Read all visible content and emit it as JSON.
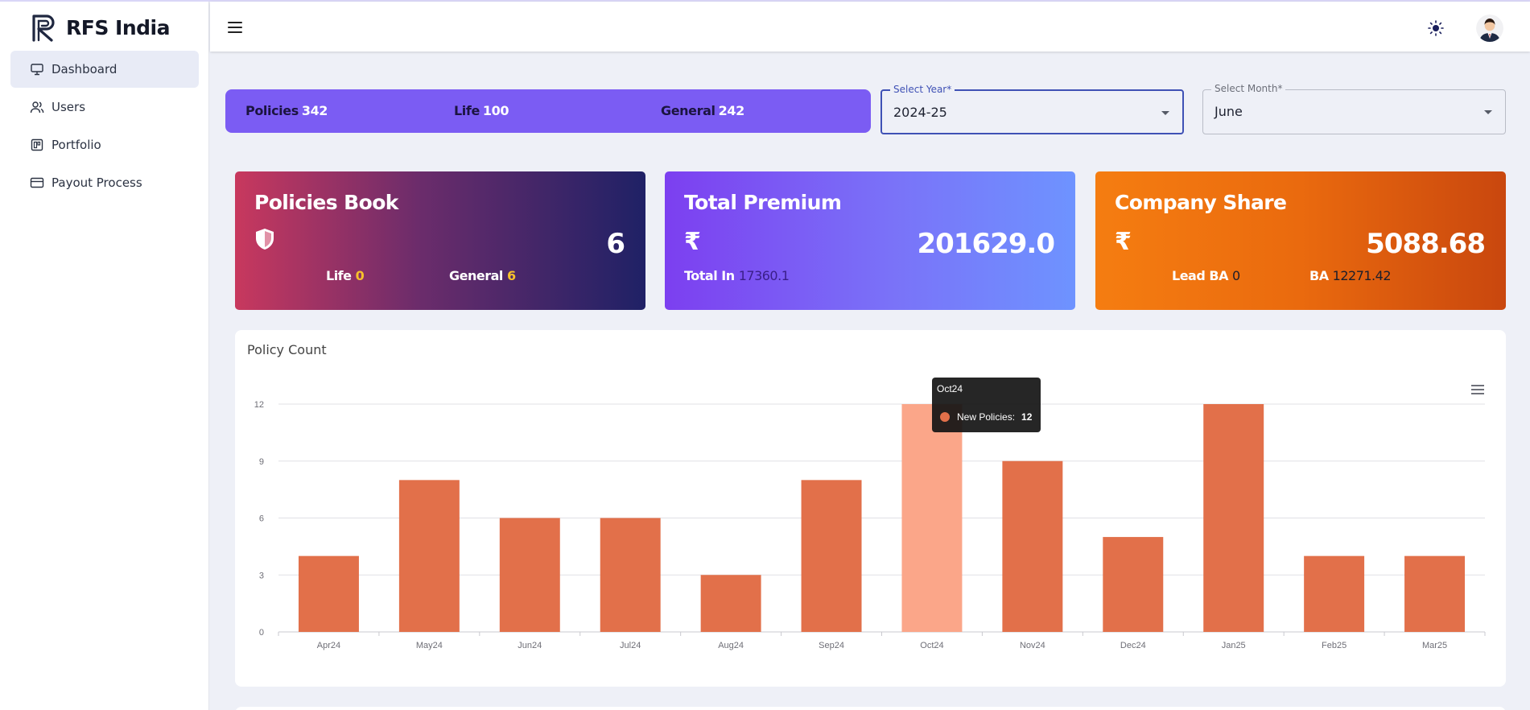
{
  "brand": {
    "name": "RFS India",
    "logo_icon": "rfs-logo-icon"
  },
  "sidebar": {
    "items": [
      {
        "label": "Dashboard",
        "icon": "monitor-icon",
        "active": true
      },
      {
        "label": "Users",
        "icon": "users-icon"
      },
      {
        "label": "Portfolio",
        "icon": "portfolio-icon"
      },
      {
        "label": "Payout Process",
        "icon": "card-icon"
      }
    ]
  },
  "header": {
    "menu_icon": "hamburger-icon",
    "theme_icon": "sun-icon",
    "avatar_icon": "user-avatar"
  },
  "summary": {
    "policies_label": "Policies",
    "policies_value": "342",
    "life_label": "Life",
    "life_value": "100",
    "general_label": "General",
    "general_value": "242"
  },
  "filters": {
    "year_label": "Select Year*",
    "year_value": "2024-25",
    "month_label": "Select Month*",
    "month_value": "June"
  },
  "cards": {
    "policies_book": {
      "title": "Policies Book",
      "icon": "shield-icon",
      "value": "6",
      "life_label": "Life",
      "life_value": "0",
      "general_label": "General",
      "general_value": "6"
    },
    "total_premium": {
      "title": "Total Premium",
      "icon_text": "₹",
      "value": "201629.0",
      "sub_label": "Total In",
      "sub_value": "17360.1"
    },
    "company_share": {
      "title": "Company Share",
      "icon_text": "₹",
      "value": "5088.68",
      "lead_label": "Lead BA",
      "lead_value": "0",
      "ba_label": "BA",
      "ba_value": "12271.42"
    }
  },
  "chart_panel": {
    "title": "Policy Count",
    "menu_icon": "chart-menu-icon"
  },
  "chart_data": {
    "type": "bar",
    "categories": [
      "Apr24",
      "May24",
      "Jun24",
      "Jul24",
      "Aug24",
      "Sep24",
      "Oct24",
      "Nov24",
      "Dec24",
      "Jan25",
      "Feb25",
      "Mar25"
    ],
    "series": [
      {
        "name": "New Policies",
        "values": [
          4,
          8,
          6,
          6,
          3,
          8,
          12,
          9,
          5,
          12,
          4,
          4
        ]
      }
    ],
    "y_ticks": [
      "0",
      "3",
      "6",
      "9",
      "12"
    ],
    "ylim": [
      0,
      12
    ],
    "grid": true,
    "bar_color": "#e2704a",
    "highlight_color": "#fba689",
    "highlighted_index": 6,
    "tooltip": {
      "title": "Oct24",
      "series_label": "New Policies:",
      "value": "12"
    }
  }
}
